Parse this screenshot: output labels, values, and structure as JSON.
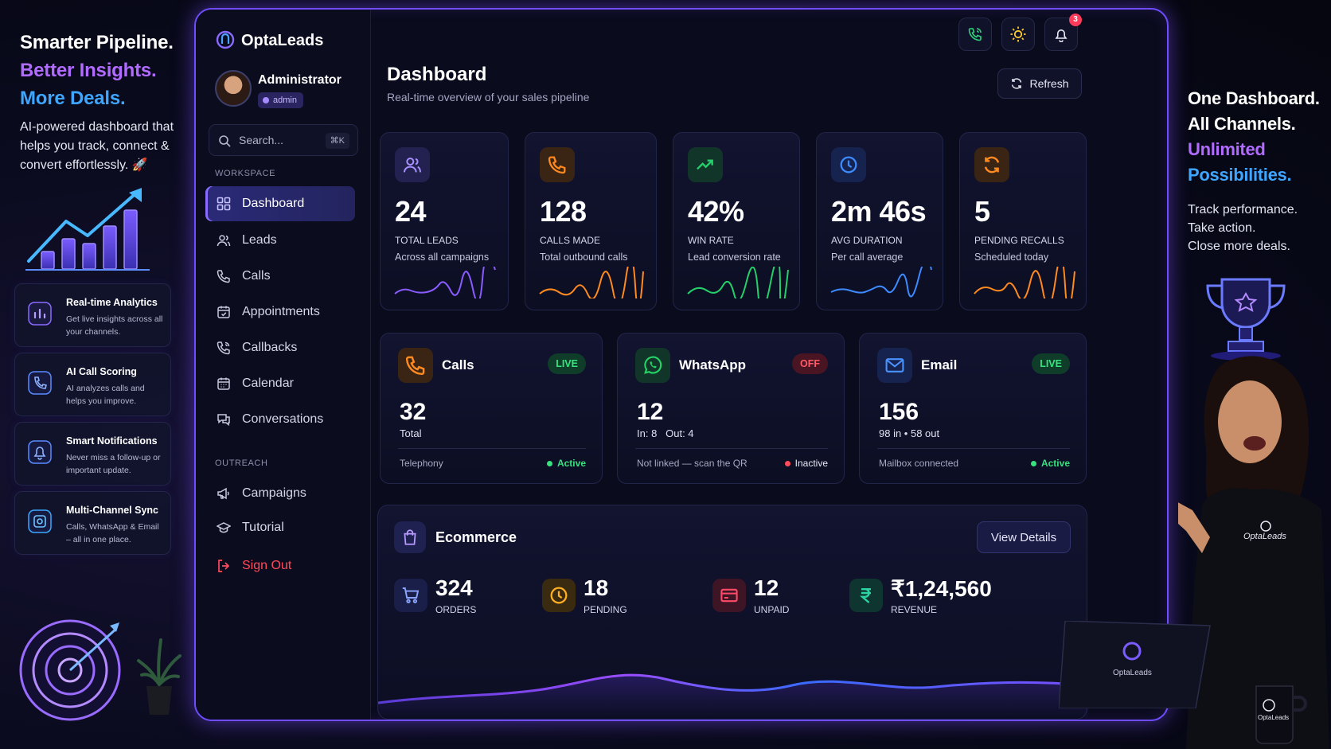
{
  "promo_left": {
    "headline": [
      "Smarter Pipeline.",
      "Better Insights.",
      "More Deals."
    ],
    "description": "AI-powered dashboard that helps you track, connect & convert effortlessly. 🚀",
    "features": [
      {
        "title": "Real-time Analytics",
        "desc": "Get live insights across all your channels.",
        "icon": "analytics-icon"
      },
      {
        "title": "AI Call Scoring",
        "desc": "AI analyzes calls and helps you improve.",
        "icon": "phone-signal-icon"
      },
      {
        "title": "Smart Notifications",
        "desc": "Never miss a follow-up or important update.",
        "icon": "bell-icon"
      },
      {
        "title": "Multi-Channel Sync",
        "desc": "Calls, WhatsApp & Email – all in one place.",
        "icon": "sync-icon"
      }
    ]
  },
  "app": {
    "brand": "OptaLeads",
    "user": {
      "name": "Administrator",
      "role": "admin"
    },
    "search": {
      "placeholder": "Search...",
      "shortcut": "⌘K"
    },
    "sections": {
      "workspace": "WORKSPACE",
      "outreach": "OUTREACH"
    },
    "nav": {
      "workspace": [
        {
          "label": "Dashboard",
          "icon": "grid-icon",
          "active": true
        },
        {
          "label": "Leads",
          "icon": "users-icon"
        },
        {
          "label": "Calls",
          "icon": "phone-icon"
        },
        {
          "label": "Appointments",
          "icon": "calendar-check-icon"
        },
        {
          "label": "Callbacks",
          "icon": "phone-callback-icon"
        },
        {
          "label": "Calendar",
          "icon": "calendar-icon"
        },
        {
          "label": "Conversations",
          "icon": "chat-icon"
        }
      ],
      "outreach": [
        {
          "label": "Campaigns",
          "icon": "megaphone-icon"
        },
        {
          "label": "Tutorial",
          "icon": "graduation-icon"
        }
      ],
      "sign_out": "Sign Out"
    },
    "topbar": {
      "notification_count": "3"
    },
    "page": {
      "title": "Dashboard",
      "subtitle": "Real-time overview of your sales pipeline",
      "refresh": "Refresh"
    },
    "kpis": [
      {
        "value": "24",
        "label": "TOTAL LEADS",
        "sub": "Across all campaigns",
        "color": "#8a6bff",
        "icon": "users-icon"
      },
      {
        "value": "128",
        "label": "CALLS MADE",
        "sub": "Total outbound calls",
        "color": "#ff8a1f",
        "icon": "phone-icon"
      },
      {
        "value": "42%",
        "label": "WIN RATE",
        "sub": "Lead conversion rate",
        "color": "#25d06a",
        "icon": "trend-up-icon"
      },
      {
        "value": "2m 46s",
        "label": "AVG DURATION",
        "sub": "Per call average",
        "color": "#3d8bff",
        "icon": "clock-icon"
      },
      {
        "value": "5",
        "label": "PENDING RECALLS",
        "sub": "Scheduled today",
        "color": "#ff8a1f",
        "icon": "refresh-icon"
      }
    ],
    "channels": [
      {
        "name": "Calls",
        "badge": "LIVE",
        "value": "32",
        "sub": "Total",
        "foot": "Telephony",
        "status": "Active",
        "color": "#ff8a1f"
      },
      {
        "name": "WhatsApp",
        "badge": "OFF",
        "value": "12",
        "sub": "In: 8   Out: 4",
        "foot": "Not linked — scan the QR",
        "status": "Inactive",
        "color": "#25d366"
      },
      {
        "name": "Email",
        "badge": "LIVE",
        "value": "156",
        "sub": "98 in • 58 out",
        "foot": "Mailbox connected",
        "status": "Active",
        "color": "#3d8bff"
      }
    ],
    "ecommerce": {
      "title": "Ecommerce",
      "button": "View Details",
      "metrics": [
        {
          "value": "324",
          "label": "ORDERS",
          "icon": "cart-icon",
          "color": "#6e8bff"
        },
        {
          "value": "18",
          "label": "PENDING",
          "icon": "clock-icon",
          "color": "#ffb020"
        },
        {
          "value": "12",
          "label": "UNPAID",
          "icon": "card-icon",
          "color": "#ff4a6a"
        },
        {
          "value": "₹1,24,560",
          "label": "REVENUE",
          "icon": "rupee-icon",
          "color": "#2bd4a0"
        }
      ]
    }
  },
  "promo_right": {
    "headline": [
      "One Dashboard.",
      "All Channels.",
      "Unlimited",
      "Possibilities."
    ],
    "lines": [
      "Track performance.",
      "Take action.",
      "Close more deals."
    ],
    "shirt_logo": "OptaLeads",
    "laptop_logo": "OptaLeads",
    "mug_logo": "OptaLeads"
  }
}
